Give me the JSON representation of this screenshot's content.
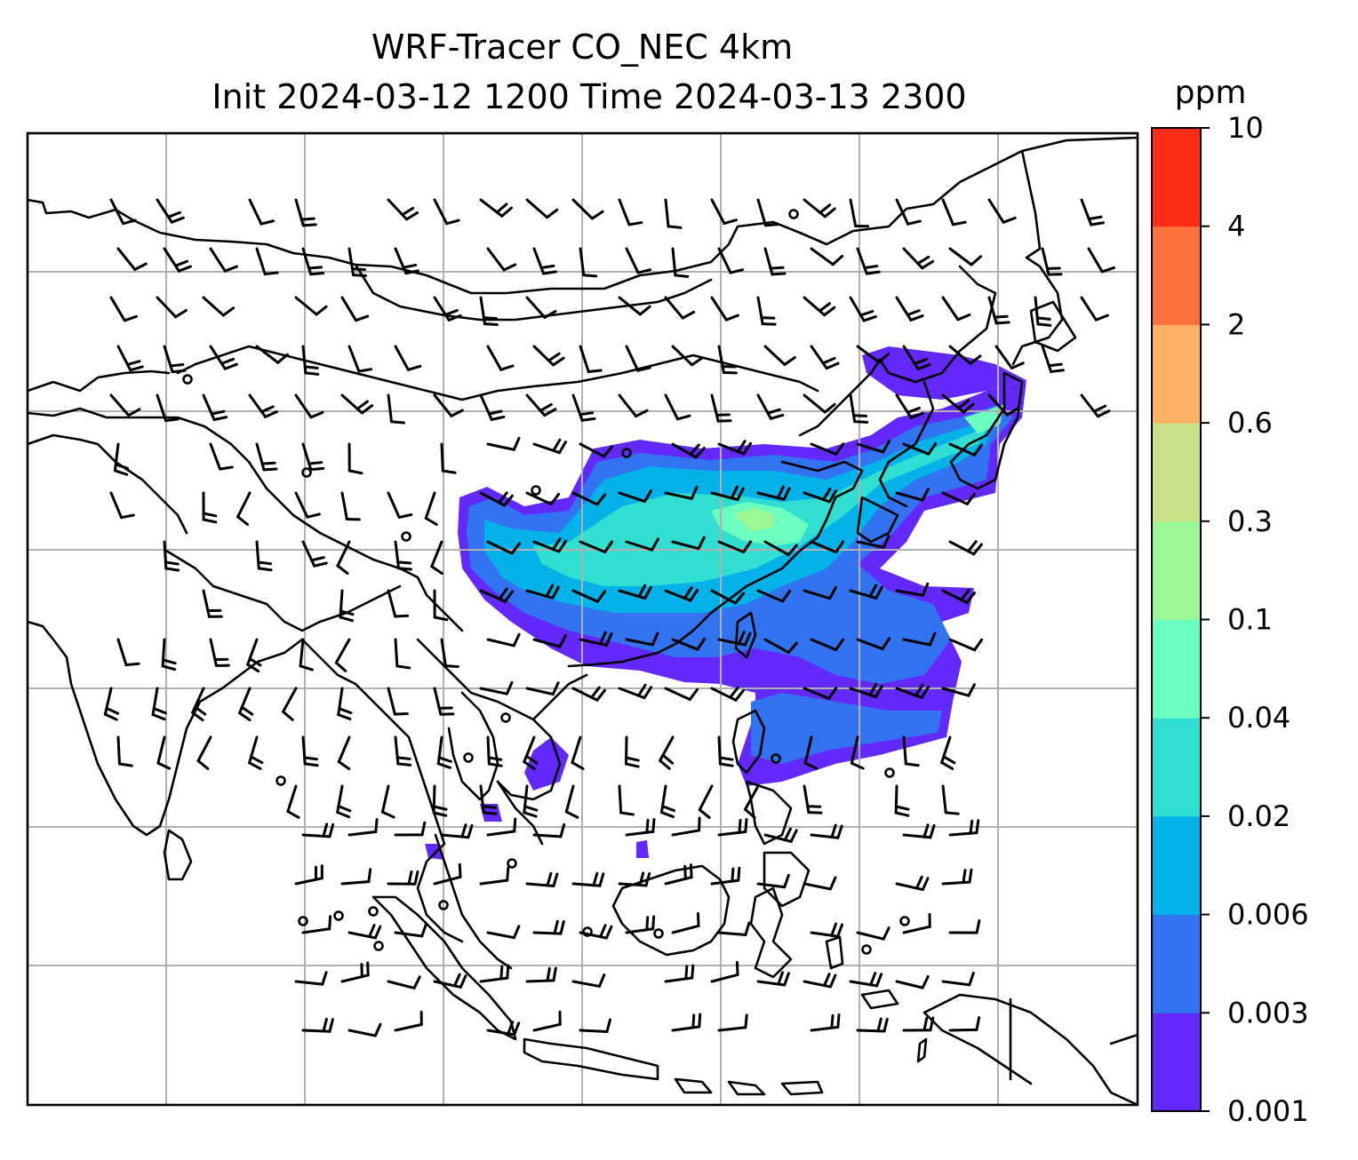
{
  "title": {
    "line1": "WRF-Tracer CO_NEC 4km",
    "line2": "Init 2024-03-12 1200 Time 2024-03-13 2300"
  },
  "colorbar": {
    "unit": "ppm",
    "levels": [
      "0.001",
      "0.003",
      "0.006",
      "0.02",
      "0.04",
      "0.1",
      "0.3",
      "0.6",
      "2",
      "4",
      "10"
    ],
    "colors": [
      "#6329fb",
      "#3173f0",
      "#04b2ea",
      "#31dfd2",
      "#6cfebe",
      "#9bf897",
      "#cbe187",
      "#feb163",
      "#ff723e",
      "#ff2c18"
    ]
  },
  "map": {
    "gridlines": true,
    "overlay": "wind-barbs"
  }
}
